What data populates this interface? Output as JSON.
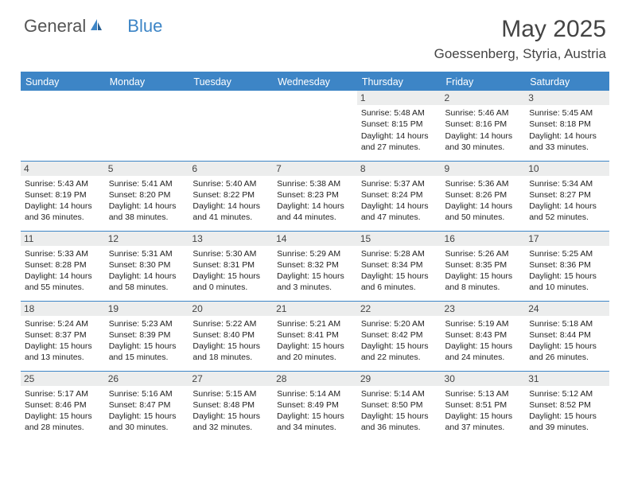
{
  "brand": {
    "name1": "General",
    "name2": "Blue"
  },
  "title": "May 2025",
  "location": "Goessenberg, Styria, Austria",
  "colors": {
    "header_bg": "#3d85c6",
    "header_text": "#ffffff",
    "daynum_bg": "#eceded",
    "border": "#3d85c6",
    "text": "#222222",
    "background": "#ffffff"
  },
  "font_family": "Arial, Helvetica, sans-serif",
  "day_headers": [
    "Sunday",
    "Monday",
    "Tuesday",
    "Wednesday",
    "Thursday",
    "Friday",
    "Saturday"
  ],
  "weeks": [
    [
      null,
      null,
      null,
      null,
      {
        "d": "1",
        "sr": "5:48 AM",
        "ss": "8:15 PM",
        "dl": "14 hours and 27 minutes."
      },
      {
        "d": "2",
        "sr": "5:46 AM",
        "ss": "8:16 PM",
        "dl": "14 hours and 30 minutes."
      },
      {
        "d": "3",
        "sr": "5:45 AM",
        "ss": "8:18 PM",
        "dl": "14 hours and 33 minutes."
      }
    ],
    [
      {
        "d": "4",
        "sr": "5:43 AM",
        "ss": "8:19 PM",
        "dl": "14 hours and 36 minutes."
      },
      {
        "d": "5",
        "sr": "5:41 AM",
        "ss": "8:20 PM",
        "dl": "14 hours and 38 minutes."
      },
      {
        "d": "6",
        "sr": "5:40 AM",
        "ss": "8:22 PM",
        "dl": "14 hours and 41 minutes."
      },
      {
        "d": "7",
        "sr": "5:38 AM",
        "ss": "8:23 PM",
        "dl": "14 hours and 44 minutes."
      },
      {
        "d": "8",
        "sr": "5:37 AM",
        "ss": "8:24 PM",
        "dl": "14 hours and 47 minutes."
      },
      {
        "d": "9",
        "sr": "5:36 AM",
        "ss": "8:26 PM",
        "dl": "14 hours and 50 minutes."
      },
      {
        "d": "10",
        "sr": "5:34 AM",
        "ss": "8:27 PM",
        "dl": "14 hours and 52 minutes."
      }
    ],
    [
      {
        "d": "11",
        "sr": "5:33 AM",
        "ss": "8:28 PM",
        "dl": "14 hours and 55 minutes."
      },
      {
        "d": "12",
        "sr": "5:31 AM",
        "ss": "8:30 PM",
        "dl": "14 hours and 58 minutes."
      },
      {
        "d": "13",
        "sr": "5:30 AM",
        "ss": "8:31 PM",
        "dl": "15 hours and 0 minutes."
      },
      {
        "d": "14",
        "sr": "5:29 AM",
        "ss": "8:32 PM",
        "dl": "15 hours and 3 minutes."
      },
      {
        "d": "15",
        "sr": "5:28 AM",
        "ss": "8:34 PM",
        "dl": "15 hours and 6 minutes."
      },
      {
        "d": "16",
        "sr": "5:26 AM",
        "ss": "8:35 PM",
        "dl": "15 hours and 8 minutes."
      },
      {
        "d": "17",
        "sr": "5:25 AM",
        "ss": "8:36 PM",
        "dl": "15 hours and 10 minutes."
      }
    ],
    [
      {
        "d": "18",
        "sr": "5:24 AM",
        "ss": "8:37 PM",
        "dl": "15 hours and 13 minutes."
      },
      {
        "d": "19",
        "sr": "5:23 AM",
        "ss": "8:39 PM",
        "dl": "15 hours and 15 minutes."
      },
      {
        "d": "20",
        "sr": "5:22 AM",
        "ss": "8:40 PM",
        "dl": "15 hours and 18 minutes."
      },
      {
        "d": "21",
        "sr": "5:21 AM",
        "ss": "8:41 PM",
        "dl": "15 hours and 20 minutes."
      },
      {
        "d": "22",
        "sr": "5:20 AM",
        "ss": "8:42 PM",
        "dl": "15 hours and 22 minutes."
      },
      {
        "d": "23",
        "sr": "5:19 AM",
        "ss": "8:43 PM",
        "dl": "15 hours and 24 minutes."
      },
      {
        "d": "24",
        "sr": "5:18 AM",
        "ss": "8:44 PM",
        "dl": "15 hours and 26 minutes."
      }
    ],
    [
      {
        "d": "25",
        "sr": "5:17 AM",
        "ss": "8:46 PM",
        "dl": "15 hours and 28 minutes."
      },
      {
        "d": "26",
        "sr": "5:16 AM",
        "ss": "8:47 PM",
        "dl": "15 hours and 30 minutes."
      },
      {
        "d": "27",
        "sr": "5:15 AM",
        "ss": "8:48 PM",
        "dl": "15 hours and 32 minutes."
      },
      {
        "d": "28",
        "sr": "5:14 AM",
        "ss": "8:49 PM",
        "dl": "15 hours and 34 minutes."
      },
      {
        "d": "29",
        "sr": "5:14 AM",
        "ss": "8:50 PM",
        "dl": "15 hours and 36 minutes."
      },
      {
        "d": "30",
        "sr": "5:13 AM",
        "ss": "8:51 PM",
        "dl": "15 hours and 37 minutes."
      },
      {
        "d": "31",
        "sr": "5:12 AM",
        "ss": "8:52 PM",
        "dl": "15 hours and 39 minutes."
      }
    ]
  ],
  "labels": {
    "sunrise": "Sunrise:",
    "sunset": "Sunset:",
    "daylight": "Daylight:"
  }
}
